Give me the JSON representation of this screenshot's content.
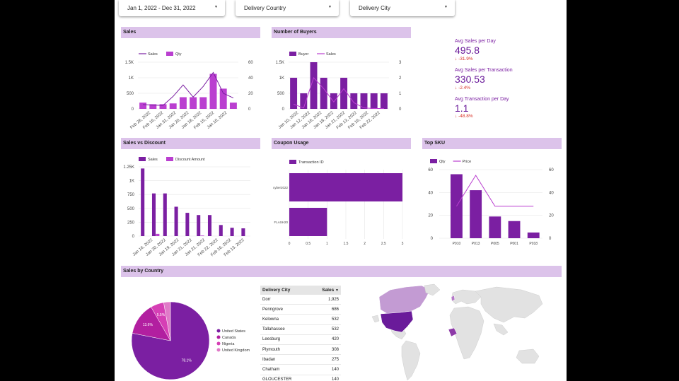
{
  "filters": {
    "date_range": "Jan 1, 2022 - Dec 31, 2022",
    "country": "Delivery Country",
    "city": "Delivery City"
  },
  "headers": {
    "sales": "Sales",
    "buyers": "Number of Buyers",
    "sales_vs_discount": "Sales vs Discount",
    "coupon": "Coupon Usage",
    "top_sku": "Top SKU",
    "sales_by_country": "Sales by Country"
  },
  "kpis": [
    {
      "label": "Avg Sales per Day",
      "value": "495.8",
      "delta": "-31.9%"
    },
    {
      "label": "Avg Sales per Transaction",
      "value": "330.53",
      "delta": "-2.4%"
    },
    {
      "label": "Avg Transaction per Day",
      "value": "1.1",
      "delta": "-48.8%"
    }
  ],
  "colors": {
    "purple_dark": "#7b1fa2",
    "purple_light": "#ba3fd0",
    "header_bg": "#dcc3ea",
    "negative": "#d93025"
  },
  "icons": {
    "dropdown": "triangle-down",
    "delta_down": "arrow-down",
    "sort": "triangle-down"
  },
  "table": {
    "headers": {
      "city": "Delivery City",
      "sales": "Sales"
    },
    "rows": [
      {
        "city": "Dorr",
        "sales": "1,925"
      },
      {
        "city": "Penngrove",
        "sales": "686"
      },
      {
        "city": "Kelowna",
        "sales": "532"
      },
      {
        "city": "Tallahassee",
        "sales": "532"
      },
      {
        "city": "Leesburg",
        "sales": "420"
      },
      {
        "city": "Plymouth",
        "sales": "308"
      },
      {
        "city": "Ibadan",
        "sales": "275"
      },
      {
        "city": "Chatham",
        "sales": "140"
      },
      {
        "city": "GLOUCESTER",
        "sales": "140"
      }
    ]
  },
  "chart_data": [
    {
      "id": "sales",
      "type": "bar",
      "legend": [
        "Sales",
        "Qty"
      ],
      "legend_placement": "top-left",
      "categories": [
        "Feb 28, 2022",
        "Feb 18, 2022",
        "Feb 16, 2022",
        "Jan 31, 2022",
        "Jan 30, 2022",
        "Jan 21, 2022",
        "Jan 18, 2022",
        "Jan 16, 2022",
        "Jan 10, 2022",
        "Jan 10, 2022"
      ],
      "xlabels": [
        "Feb 28, 2022",
        "Feb 16, 2022",
        "Jan 31, 2022",
        "Jan 20, 2022",
        "Jan 18, 2022",
        "Feb 15, 2022",
        "Jan 10, 2022"
      ],
      "series": [
        {
          "name": "Sales",
          "kind": "line",
          "axis": "left",
          "values": [
            140,
            120,
            110,
            400,
            770,
            380,
            720,
            1170,
            500,
            350
          ]
        },
        {
          "name": "Qty",
          "kind": "bar",
          "axis": "right",
          "values": [
            8,
            6,
            6,
            7,
            15,
            15,
            15,
            45,
            26,
            8
          ]
        }
      ],
      "yticks_left": [
        "1.5K",
        "1K",
        "500",
        "0"
      ],
      "yticks_right": [
        "60",
        "40",
        "20",
        "0"
      ],
      "ylim_left": [
        0,
        1500
      ],
      "ylim_right": [
        0,
        60
      ]
    },
    {
      "id": "buyers",
      "type": "bar",
      "legend": [
        "Buyer",
        "Sales"
      ],
      "legend_placement": "top-left",
      "xlabels": [
        "Jan 10, 2022",
        "Jan 12, 2022",
        "Jan 16, 2022",
        "Jan 18, 2022",
        "Jan 21, 2022",
        "Feb 13, 2022",
        "Feb 16, 2022",
        "Feb 22, 2022"
      ],
      "series": [
        {
          "name": "Buyer",
          "kind": "bar",
          "axis": "right",
          "values": [
            2,
            1,
            3,
            2,
            1,
            2,
            1,
            1,
            1,
            1
          ]
        },
        {
          "name": "Sales",
          "kind": "line",
          "axis": "left",
          "values": [
            150,
            30,
            1000,
            650,
            220,
            650,
            200,
            30,
            10,
            10
          ]
        }
      ],
      "yticks_left": [
        "1.5K",
        "1K",
        "500",
        "0"
      ],
      "yticks_right": [
        "3",
        "2",
        "1",
        "0"
      ],
      "ylim_left": [
        0,
        1500
      ],
      "ylim_right": [
        0,
        3
      ]
    },
    {
      "id": "sales_vs_discount",
      "type": "bar",
      "legend": [
        "Sales",
        "Discount Amount"
      ],
      "legend_placement": "top-left",
      "xlabels": [
        "Jan 16, 2022",
        "Jan 20, 2022",
        "Jan 19, 2022",
        "Jan 21, 2022",
        "Jan 21, 2022",
        "Feb 22, 2022",
        "Feb 16, 2022",
        "Feb 13, 2022"
      ],
      "series": [
        {
          "name": "Sales",
          "values": [
            1220,
            770,
            770,
            530,
            420,
            380,
            380,
            200,
            150,
            140
          ]
        },
        {
          "name": "Discount Amount",
          "values": [
            0,
            40,
            0,
            0,
            0,
            10,
            0,
            0,
            0,
            0
          ]
        }
      ],
      "yticks": [
        "1.25K",
        "1K",
        "750",
        "500",
        "250",
        "0"
      ],
      "ylim": [
        0,
        1250
      ]
    },
    {
      "id": "coupon",
      "type": "bar",
      "orientation": "horizontal",
      "legend": [
        "Transaction ID"
      ],
      "legend_placement": "top-left",
      "categories": [
        "cyber2022",
        "FLASH20"
      ],
      "values": [
        3,
        1
      ],
      "xticks": [
        "0",
        "0.5",
        "1",
        "1.5",
        "2",
        "2.5",
        "3"
      ],
      "xlim": [
        0,
        3
      ]
    },
    {
      "id": "top_sku",
      "type": "bar",
      "legend": [
        "Qty",
        "Price"
      ],
      "legend_placement": "top-left",
      "categories": [
        "P010",
        "P013",
        "P005",
        "P001",
        "P018"
      ],
      "series": [
        {
          "name": "Qty",
          "kind": "bar",
          "axis": "left",
          "values": [
            56,
            42,
            19,
            15,
            5
          ]
        },
        {
          "name": "Price",
          "kind": "line",
          "axis": "right",
          "values": [
            28,
            55,
            28,
            28,
            28
          ]
        }
      ],
      "yticks_left": [
        "60",
        "40",
        "20",
        "0"
      ],
      "yticks_right": [
        "60",
        "40",
        "20",
        "0"
      ],
      "ylim_left": [
        0,
        60
      ],
      "ylim_right": [
        0,
        60
      ]
    },
    {
      "id": "sales_by_country",
      "type": "pie",
      "legend": [
        "United States",
        "Canada",
        "Nigeria",
        "United Kingdom"
      ],
      "legend_placement": "right",
      "values": [
        78.1,
        13.6,
        5.5,
        2.8
      ],
      "labels": [
        "78.1%",
        "13.6%",
        "5.5%",
        ""
      ]
    }
  ]
}
